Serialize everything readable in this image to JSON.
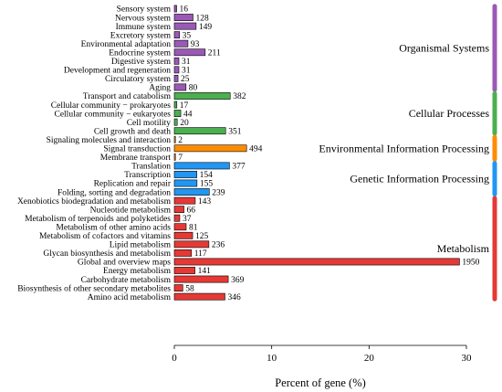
{
  "chart_data": {
    "type": "bar",
    "orientation": "horizontal",
    "xlabel": "Percent of gene (%)",
    "xlim": [
      0,
      30
    ],
    "xticks": [
      0,
      10,
      20,
      30
    ],
    "grid": false,
    "groups": [
      {
        "name": "Organismal Systems",
        "color": "#9b59b6",
        "items": [
          {
            "label": "Sensory system",
            "count": 16,
            "percent": 0.24
          },
          {
            "label": "Nervous system",
            "count": 128,
            "percent": 1.92
          },
          {
            "label": "Immune system",
            "count": 149,
            "percent": 2.24
          },
          {
            "label": "Excretory system",
            "count": 35,
            "percent": 0.53
          },
          {
            "label": "Environmental adaptation",
            "count": 93,
            "percent": 1.4
          },
          {
            "label": "Endocrine system",
            "count": 211,
            "percent": 3.17
          },
          {
            "label": "Digestive system",
            "count": 31,
            "percent": 0.47
          },
          {
            "label": "Development and regeneration",
            "count": 31,
            "percent": 0.47
          },
          {
            "label": "Circulatory system",
            "count": 25,
            "percent": 0.38
          },
          {
            "label": "Aging",
            "count": 80,
            "percent": 1.2
          }
        ]
      },
      {
        "name": "Cellular Processes",
        "color": "#4caf50",
        "items": [
          {
            "label": "Transport and catabolism",
            "count": 382,
            "percent": 5.74
          },
          {
            "label": "Cellular community − prokaryotes",
            "count": 17,
            "percent": 0.26
          },
          {
            "label": "Cellular community − eukaryotes",
            "count": 44,
            "percent": 0.66
          },
          {
            "label": "Cell motility",
            "count": 20,
            "percent": 0.3
          },
          {
            "label": "Cell growth and death",
            "count": 351,
            "percent": 5.27
          }
        ]
      },
      {
        "name": "Environmental Information Processing",
        "color": "#ff8c00",
        "items": [
          {
            "label": "Signaling molecules and interaction",
            "count": 2,
            "percent": 0.03
          },
          {
            "label": "Signal transduction",
            "count": 494,
            "percent": 7.42
          },
          {
            "label": "Membrane transport",
            "count": 7,
            "percent": 0.11
          }
        ]
      },
      {
        "name": "Genetic Information Processing",
        "color": "#2196f3",
        "items": [
          {
            "label": "Translation",
            "count": 377,
            "percent": 5.66
          },
          {
            "label": "Transcription",
            "count": 154,
            "percent": 2.31
          },
          {
            "label": "Replication and repair",
            "count": 155,
            "percent": 2.33
          },
          {
            "label": "Folding, sorting and degradation",
            "count": 239,
            "percent": 3.59
          }
        ]
      },
      {
        "name": "Metabolism",
        "color": "#e53935",
        "items": [
          {
            "label": "Xenobiotics biodegradation and metabolism",
            "count": 143,
            "percent": 2.15
          },
          {
            "label": "Nucleotide metabolism",
            "count": 66,
            "percent": 0.99
          },
          {
            "label": "Metabolism of terpenoids and polyketides",
            "count": 37,
            "percent": 0.56
          },
          {
            "label": "Metabolism of other amino acids",
            "count": 81,
            "percent": 1.22
          },
          {
            "label": "Metabolism of cofactors and vitamins",
            "count": 125,
            "percent": 1.88
          },
          {
            "label": "Lipid metabolism",
            "count": 236,
            "percent": 3.55
          },
          {
            "label": "Glycan biosynthesis and metabolism",
            "count": 117,
            "percent": 1.76
          },
          {
            "label": "Global and overview maps",
            "count": 1950,
            "percent": 29.29
          },
          {
            "label": "Energy metabolism",
            "count": 141,
            "percent": 2.12
          },
          {
            "label": "Carbohydrate metabolism",
            "count": 369,
            "percent": 5.54
          },
          {
            "label": "Biosynthesis of other secondary metabolites",
            "count": 58,
            "percent": 0.87
          },
          {
            "label": "Amino acid metabolism",
            "count": 346,
            "percent": 5.2
          }
        ]
      }
    ]
  }
}
